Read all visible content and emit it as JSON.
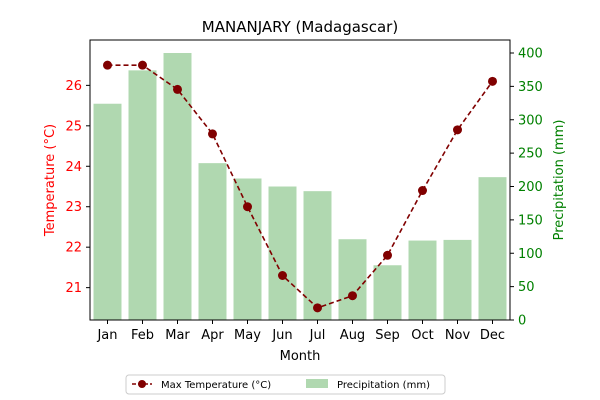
{
  "chart_data": {
    "type": "bar+line",
    "title": "MANANJARY (Madagascar)",
    "xlabel": "Month",
    "categories": [
      "Jan",
      "Feb",
      "Mar",
      "Apr",
      "May",
      "Jun",
      "Jul",
      "Aug",
      "Sep",
      "Oct",
      "Nov",
      "Dec"
    ],
    "left_axis": {
      "label": "Temperature (°C)",
      "ylim": [
        20.2,
        26.8
      ],
      "ticks": [
        21,
        22,
        23,
        24,
        25,
        26
      ],
      "color": "#ff0000"
    },
    "right_axis": {
      "label": "Precipitation (mm)",
      "ylim": [
        0,
        400
      ],
      "ticks": [
        0,
        50,
        100,
        150,
        200,
        250,
        300,
        350,
        400
      ],
      "color": "#008000"
    },
    "series": [
      {
        "name": "Max Temperature (°C)",
        "kind": "line",
        "axis": "left",
        "color": "#800000",
        "values": [
          26.5,
          26.5,
          25.9,
          24.8,
          23.0,
          21.3,
          20.5,
          20.8,
          21.8,
          23.4,
          24.9,
          26.1
        ]
      },
      {
        "name": "Precipitation (mm)",
        "kind": "bar",
        "axis": "right",
        "color": "#b0d8b0",
        "values": [
          324,
          374,
          400,
          235,
          212,
          200,
          193,
          121,
          82,
          119,
          120,
          214
        ]
      }
    ],
    "legend": "bottom-center",
    "grid": false
  }
}
